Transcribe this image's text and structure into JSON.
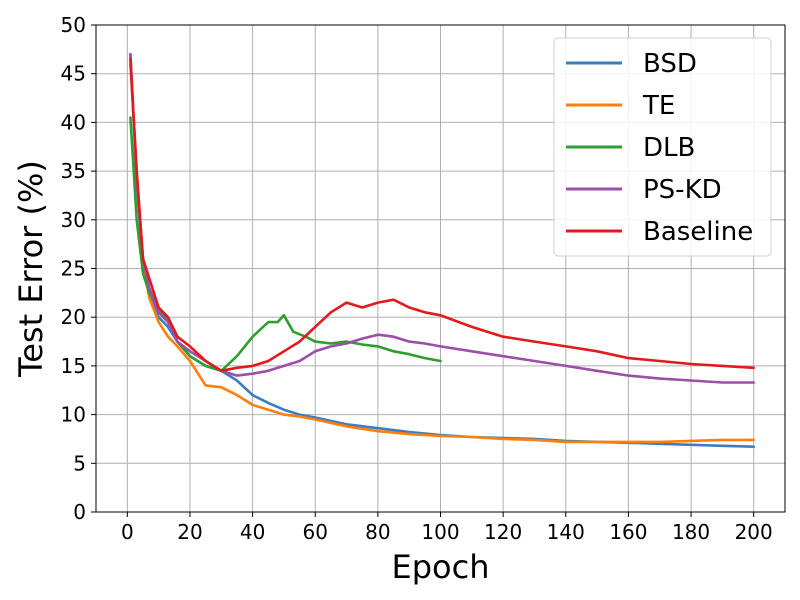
{
  "chart_data": {
    "type": "line",
    "title": "",
    "xlabel": "Epoch",
    "ylabel": "Test Error (%)",
    "xlim": [
      -10,
      210
    ],
    "ylim": [
      0,
      50
    ],
    "xticks": [
      0,
      20,
      40,
      60,
      80,
      100,
      120,
      140,
      160,
      180,
      200
    ],
    "xtick_labels": [
      "0",
      "20",
      "40",
      "60",
      "80",
      "100",
      "120",
      "140",
      "160",
      "180",
      "200"
    ],
    "yticks": [
      0,
      5,
      10,
      15,
      20,
      25,
      30,
      35,
      40,
      45,
      50
    ],
    "ytick_labels": [
      "0",
      "5",
      "10",
      "15",
      "20",
      "25",
      "30",
      "35",
      "40",
      "45",
      "50"
    ],
    "grid": true,
    "legend_position": "top-right",
    "series": [
      {
        "name": "BSD",
        "color": "#3a7ebf",
        "x": [
          1,
          3,
          5,
          7,
          10,
          13,
          16,
          20,
          25,
          30,
          35,
          40,
          45,
          50,
          55,
          60,
          70,
          80,
          90,
          100,
          110,
          120,
          130,
          140,
          150,
          160,
          170,
          180,
          190,
          200
        ],
        "y": [
          47.0,
          34.0,
          25.0,
          22.5,
          20.0,
          19.0,
          17.5,
          16.0,
          15.0,
          14.5,
          13.5,
          12.0,
          11.2,
          10.5,
          10.0,
          9.7,
          9.0,
          8.6,
          8.2,
          7.9,
          7.7,
          7.6,
          7.5,
          7.3,
          7.2,
          7.1,
          7.0,
          6.9,
          6.8,
          6.7
        ]
      },
      {
        "name": "TE",
        "color": "#ff7f0e",
        "x": [
          1,
          3,
          5,
          7,
          10,
          13,
          16,
          20,
          23,
          25,
          30,
          35,
          40,
          45,
          50,
          55,
          60,
          70,
          80,
          90,
          100,
          110,
          120,
          130,
          140,
          150,
          160,
          170,
          180,
          190,
          200
        ],
        "y": [
          46.0,
          35.0,
          26.0,
          22.0,
          19.5,
          18.0,
          17.0,
          15.5,
          14.0,
          13.0,
          12.8,
          12.0,
          11.0,
          10.5,
          10.0,
          9.8,
          9.5,
          8.8,
          8.3,
          8.0,
          7.8,
          7.7,
          7.5,
          7.4,
          7.2,
          7.2,
          7.2,
          7.2,
          7.3,
          7.4,
          7.4
        ]
      },
      {
        "name": "DLB",
        "color": "#2ca02c",
        "x": [
          1,
          3,
          5,
          7,
          10,
          13,
          16,
          20,
          25,
          30,
          35,
          40,
          45,
          48,
          50,
          53,
          57,
          60,
          65,
          70,
          75,
          80,
          85,
          90,
          95,
          100
        ],
        "y": [
          40.5,
          30.0,
          24.5,
          22.5,
          21.0,
          19.5,
          17.5,
          16.0,
          15.0,
          14.5,
          16.0,
          18.0,
          19.5,
          19.5,
          20.2,
          18.5,
          18.0,
          17.5,
          17.3,
          17.5,
          17.2,
          17.0,
          16.5,
          16.2,
          15.8,
          15.5
        ]
      },
      {
        "name": "PS-KD",
        "color": "#9b4fa8",
        "x": [
          1,
          3,
          5,
          7,
          10,
          13,
          16,
          20,
          25,
          30,
          35,
          40,
          45,
          50,
          55,
          60,
          65,
          70,
          75,
          80,
          85,
          90,
          95,
          100,
          110,
          120,
          130,
          140,
          150,
          160,
          170,
          180,
          190,
          200
        ],
        "y": [
          47.0,
          34.0,
          26.0,
          23.0,
          20.5,
          19.5,
          17.5,
          16.5,
          15.5,
          14.5,
          14.0,
          14.2,
          14.5,
          15.0,
          15.5,
          16.5,
          17.0,
          17.3,
          17.8,
          18.2,
          18.0,
          17.5,
          17.3,
          17.0,
          16.5,
          16.0,
          15.5,
          15.0,
          14.5,
          14.0,
          13.7,
          13.5,
          13.3,
          13.3
        ]
      },
      {
        "name": "Baseline",
        "color": "#e31a1c",
        "x": [
          1,
          3,
          5,
          7,
          10,
          13,
          16,
          20,
          25,
          30,
          35,
          40,
          45,
          50,
          55,
          60,
          65,
          70,
          75,
          80,
          85,
          90,
          95,
          100,
          110,
          120,
          130,
          140,
          150,
          160,
          170,
          180,
          190,
          200
        ],
        "y": [
          46.5,
          35.0,
          26.0,
          24.0,
          21.0,
          20.0,
          18.0,
          17.0,
          15.5,
          14.5,
          14.8,
          15.0,
          15.5,
          16.5,
          17.5,
          19.0,
          20.5,
          21.5,
          21.0,
          21.5,
          21.8,
          21.0,
          20.5,
          20.2,
          19.0,
          18.0,
          17.5,
          17.0,
          16.5,
          15.8,
          15.5,
          15.2,
          15.0,
          14.8
        ]
      }
    ]
  }
}
